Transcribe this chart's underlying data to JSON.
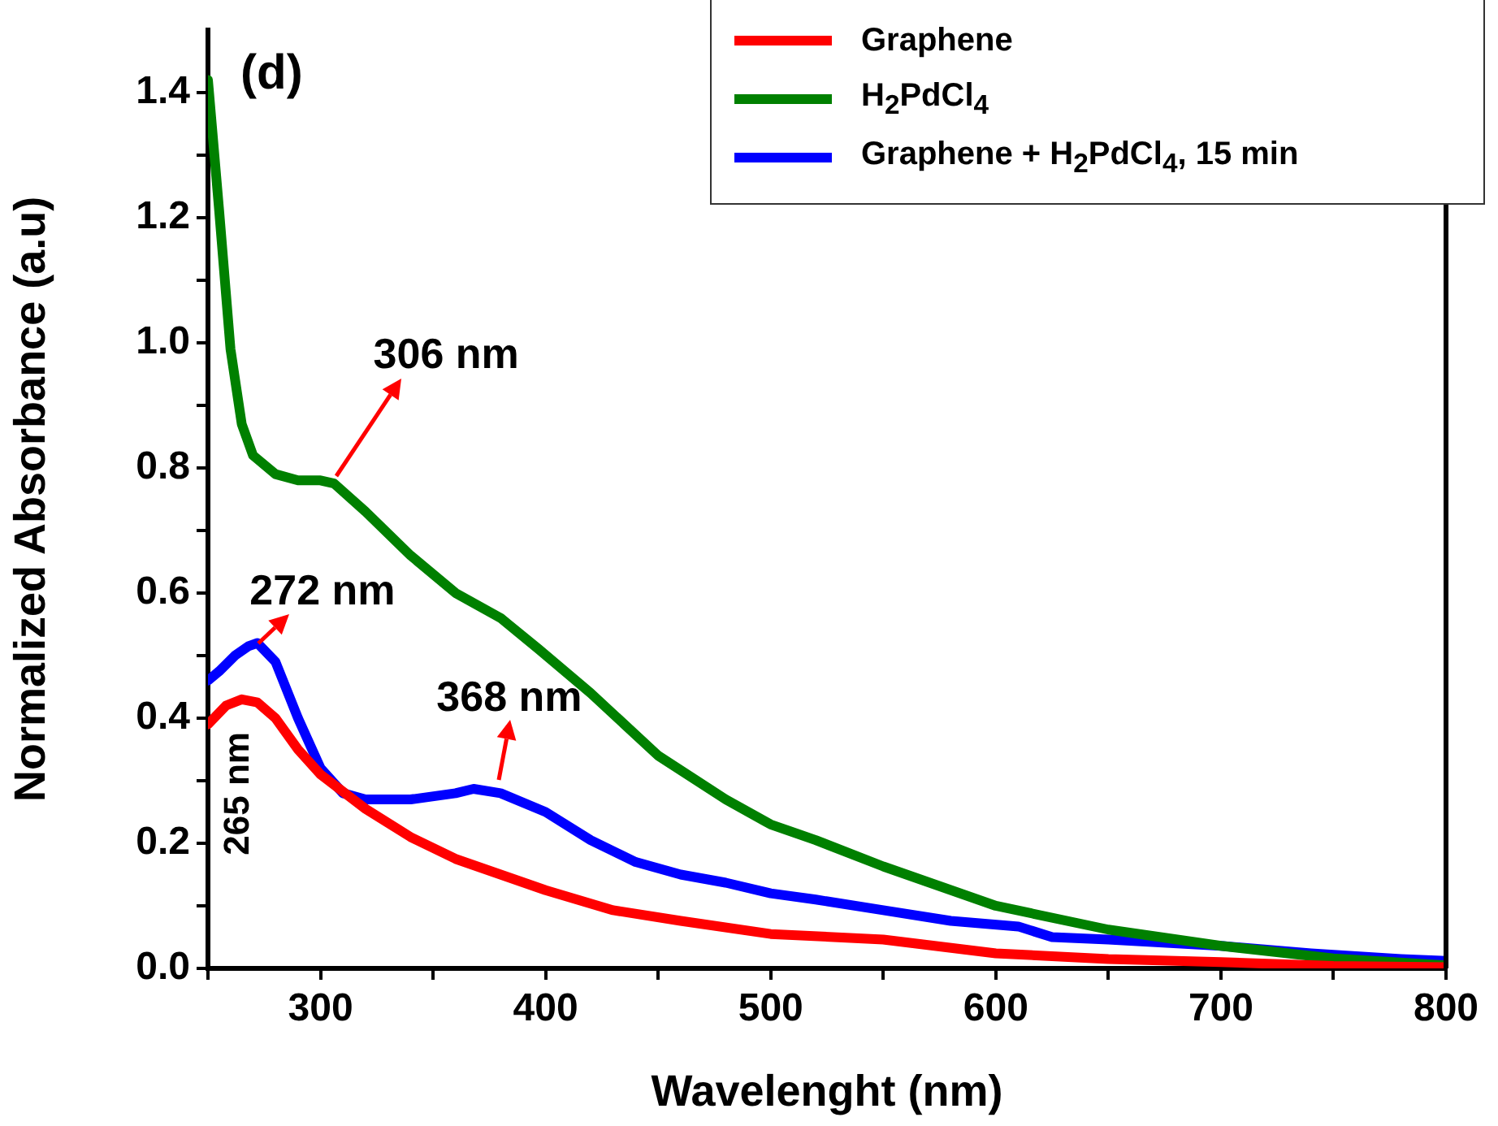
{
  "chart_data": {
    "type": "line",
    "xlabel": "Wavelenght (nm)",
    "ylabel": "Normalized Absorbance (a.u)",
    "xlim": [
      250,
      800
    ],
    "ylim": [
      0,
      1.5
    ],
    "xticks": [
      {
        "value": 250,
        "label": null
      },
      300,
      {
        "value": 350,
        "label": null
      },
      400,
      {
        "value": 450,
        "label": null
      },
      500,
      {
        "value": 550,
        "label": null
      },
      600,
      {
        "value": 650,
        "label": null
      },
      700,
      {
        "value": 750,
        "label": null
      },
      800
    ],
    "yticks": [
      {
        "value": 0,
        "label": "0.0"
      },
      {
        "value": 0.1,
        "label": null
      },
      0.2,
      {
        "value": 0.3,
        "label": null
      },
      0.4,
      {
        "value": 0.5,
        "label": null
      },
      0.6,
      {
        "value": 0.7,
        "label": null
      },
      0.8,
      {
        "value": 0.9,
        "label": null
      },
      {
        "value": 1,
        "label": "1.0"
      },
      {
        "value": 1.1,
        "label": null
      },
      1.2,
      {
        "value": 1.3,
        "label": null
      },
      1.4
    ],
    "grid": false,
    "legend": "top right",
    "marker": "none",
    "line_style": "solid",
    "series": [
      {
        "name": "Graphene",
        "color": "#ff0000",
        "x": [
          250,
          258,
          265,
          272,
          280,
          290,
          300,
          320,
          340,
          360,
          380,
          400,
          430,
          460,
          500,
          550,
          600,
          650,
          700,
          750,
          800
        ],
        "values": [
          0.39,
          0.42,
          0.43,
          0.425,
          0.4,
          0.35,
          0.31,
          0.255,
          0.21,
          0.175,
          0.15,
          0.125,
          0.093,
          0.076,
          0.055,
          0.046,
          0.024,
          0.015,
          0.01,
          0.004,
          0.002
        ]
      },
      {
        "name": "H$_{2}$PdCl$_{4}$",
        "color": "#008000",
        "x": [
          250,
          255,
          260,
          265,
          270,
          280,
          290,
          300,
          306,
          320,
          340,
          360,
          380,
          397,
          420,
          450,
          480,
          500,
          520,
          550,
          600,
          650,
          700,
          750,
          800
        ],
        "values": [
          1.42,
          1.21,
          0.99,
          0.87,
          0.82,
          0.79,
          0.78,
          0.78,
          0.775,
          0.73,
          0.66,
          0.6,
          0.56,
          0.51,
          0.44,
          0.34,
          0.27,
          0.23,
          0.205,
          0.163,
          0.1,
          0.062,
          0.036,
          0.016,
          0.005
        ]
      },
      {
        "name": "Graphene + H$_{2}$PdCl$_{4}$, 15 min",
        "color": "#0000ff",
        "x": [
          250,
          255,
          262,
          268,
          272,
          280,
          290,
          300,
          310,
          320,
          340,
          360,
          368,
          380,
          400,
          420,
          440,
          460,
          480,
          500,
          520,
          550,
          580,
          610,
          625,
          650,
          700,
          740,
          780,
          800
        ],
        "values": [
          0.46,
          0.475,
          0.5,
          0.515,
          0.52,
          0.49,
          0.4,
          0.32,
          0.28,
          0.27,
          0.27,
          0.28,
          0.287,
          0.28,
          0.25,
          0.205,
          0.17,
          0.15,
          0.137,
          0.12,
          0.11,
          0.093,
          0.076,
          0.067,
          0.05,
          0.046,
          0.036,
          0.024,
          0.015,
          0.012
        ]
      }
    ],
    "annotations": [
      "(d)",
      {
        "text": "306 nm",
        "x": 306,
        "y": 0.775
      },
      {
        "text": "272 nm",
        "x": 272,
        "y": 0.52
      },
      {
        "text": "368 nm",
        "x": 368,
        "y": 0.287
      },
      {
        "text": "265 nm",
        "x": 265,
        "y": 0.43
      }
    ]
  }
}
